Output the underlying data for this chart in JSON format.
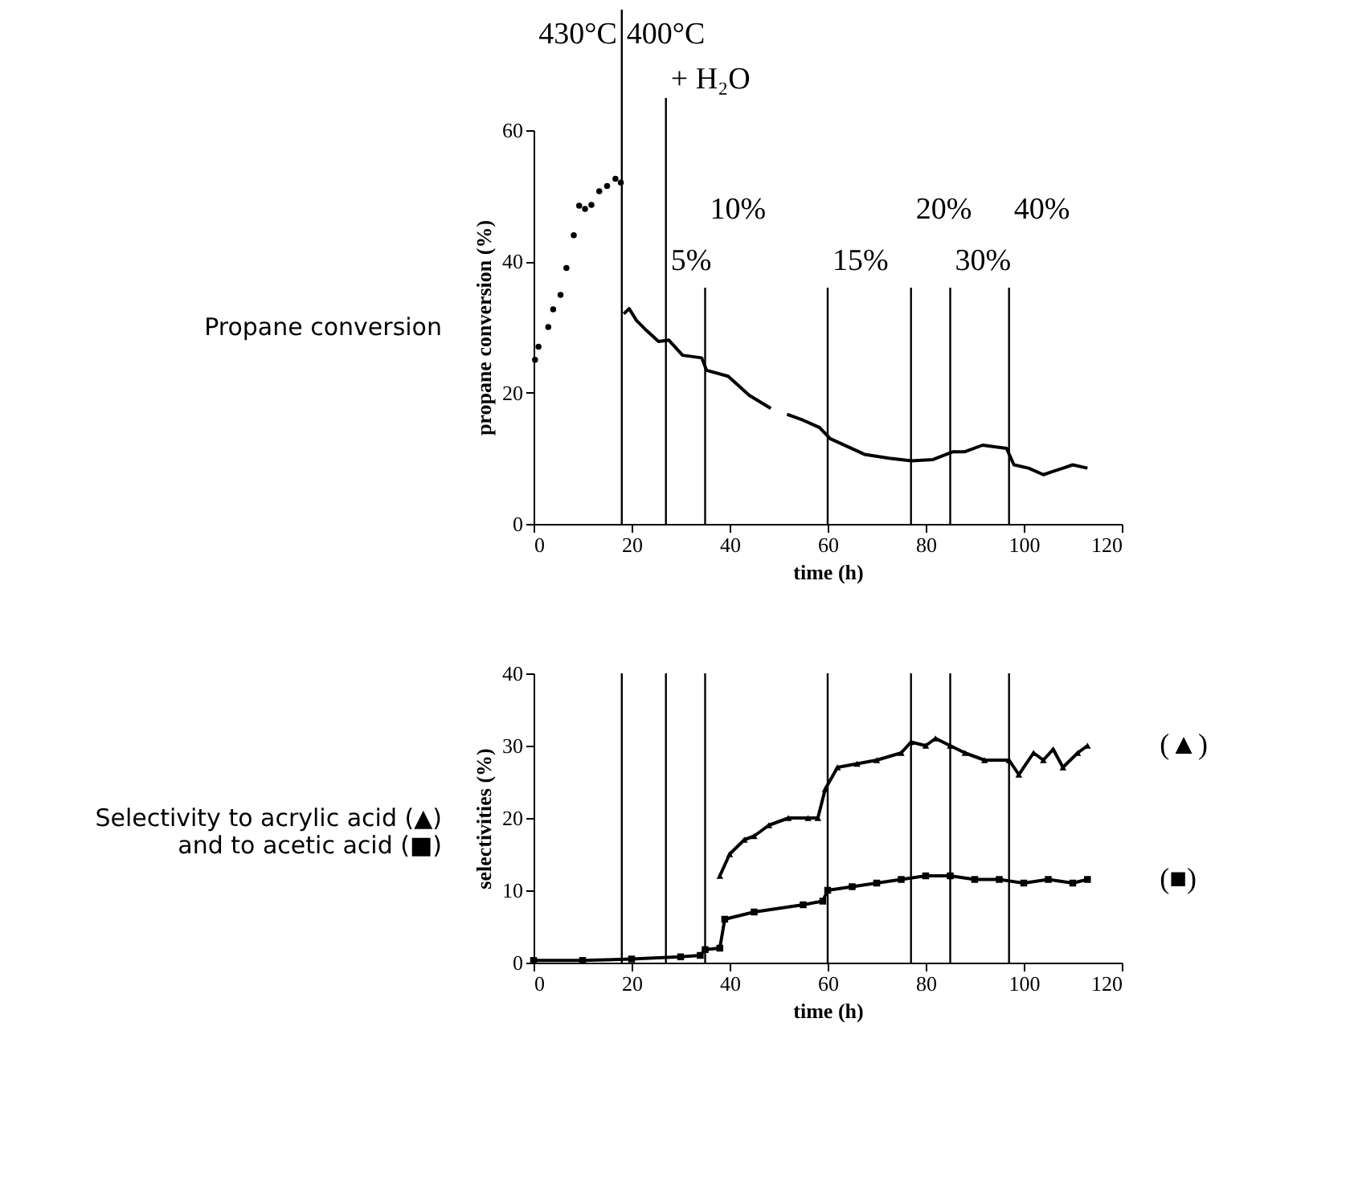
{
  "chart_data": [
    {
      "type": "line",
      "xlabel": "time (h)",
      "ylabel": "propane conversion (%)",
      "xlim": [
        0,
        120
      ],
      "xticks": [
        0,
        20,
        40,
        60,
        80,
        100,
        120
      ],
      "ylim": [
        0,
        60
      ],
      "yticks": [
        0,
        20,
        40,
        60
      ],
      "grid": false,
      "line_style": "solid",
      "series": [
        {
          "type": "scatter",
          "marker": "circle",
          "color": "#000000",
          "x": [
            0.3,
            1,
            3,
            4,
            5.5,
            6.7,
            8.2,
            9.3,
            10.5,
            11.8,
            13.4,
            15,
            16.7,
            17.8
          ],
          "values": [
            25,
            27,
            30,
            32.7,
            34.9,
            39,
            44,
            48.5,
            48,
            48.6,
            50.7,
            51.5,
            52.6,
            52
          ]
        },
        {
          "type": "line",
          "marker": "none",
          "color": "#000000",
          "x": [
            18.4,
            19.5,
            21,
            23,
            25.5,
            27.6,
            30.4,
            34.3,
            35.3,
            39.7,
            44,
            48.4,
            50,
            51.7,
            55,
            58.3,
            60.5,
            64,
            67.5,
            72.5,
            77.1,
            81.5,
            85.6,
            88,
            91.6,
            96.5,
            98,
            101,
            104,
            106,
            108,
            110,
            113
          ],
          "values": [
            32,
            32.8,
            31,
            29.5,
            27.8,
            28,
            25.7,
            25.3,
            23.4,
            22.5,
            19.6,
            17.6,
            null,
            16.7,
            15.8,
            14.7,
            13,
            11.8,
            10.6,
            10,
            9.6,
            9.8,
            11,
            11,
            12,
            11.5,
            9,
            8.5,
            7.5,
            8,
            8.5,
            9,
            8.5
          ]
        }
      ],
      "ref_lines": [
        {
          "axis": "x",
          "value": 18
        },
        {
          "axis": "x",
          "value": 27
        },
        {
          "axis": "x",
          "value": 35
        },
        {
          "axis": "x",
          "value": 60
        },
        {
          "axis": "x",
          "value": 77
        },
        {
          "axis": "x",
          "value": 85
        },
        {
          "axis": "x",
          "value": 97
        }
      ],
      "annotations": [
        "Propane conversion",
        "430°C",
        "400°C",
        "+ H₂O",
        "5%",
        "10%",
        "15%",
        "20%",
        "30%",
        "40%"
      ]
    },
    {
      "type": "line",
      "xlabel": "time (h)",
      "ylabel": "selectivities (%)",
      "xlim": [
        0,
        120
      ],
      "xticks": [
        0,
        20,
        40,
        60,
        80,
        100,
        120
      ],
      "ylim": [
        0,
        40
      ],
      "yticks": [
        0,
        10,
        20,
        30,
        40
      ],
      "grid": false,
      "line_style": "solid",
      "series": [
        {
          "name": "(▲)",
          "marker": "triangle",
          "color": "#000000",
          "x": [
            38,
            40,
            43,
            45,
            48,
            52,
            56,
            58,
            59.5,
            62,
            66,
            70,
            75,
            77,
            80,
            82,
            85,
            88,
            92,
            97,
            99,
            102,
            104,
            106,
            108,
            111,
            113
          ],
          "values": [
            12,
            15,
            17,
            17.5,
            19,
            20,
            20,
            20,
            24,
            27,
            27.5,
            28,
            29,
            30.5,
            30,
            31,
            30,
            29,
            28,
            28,
            26,
            29,
            28,
            29.5,
            27,
            29,
            30
          ]
        },
        {
          "name": "(■)",
          "marker": "square",
          "color": "#000000",
          "x": [
            0,
            10,
            20,
            30,
            34,
            35,
            38,
            39,
            45,
            55,
            59,
            60,
            65,
            70,
            75,
            80,
            85,
            90,
            95,
            100,
            105,
            110,
            113
          ],
          "values": [
            0.3,
            0.3,
            0.5,
            0.8,
            1,
            1.8,
            2,
            6,
            7,
            8,
            8.5,
            10,
            10.5,
            11,
            11.5,
            12,
            12,
            11.5,
            11.5,
            11,
            11.5,
            11,
            11.5
          ]
        }
      ],
      "ref_lines": [
        {
          "axis": "x",
          "value": 18
        },
        {
          "axis": "x",
          "value": 27
        },
        {
          "axis": "x",
          "value": 35
        },
        {
          "axis": "x",
          "value": 60
        },
        {
          "axis": "x",
          "value": 77
        },
        {
          "axis": "x",
          "value": 85
        },
        {
          "axis": "x",
          "value": 97
        }
      ],
      "annotations": [
        "Selectivity to acrylic acid (▲)\nand to acetic acid (■)"
      ]
    }
  ]
}
